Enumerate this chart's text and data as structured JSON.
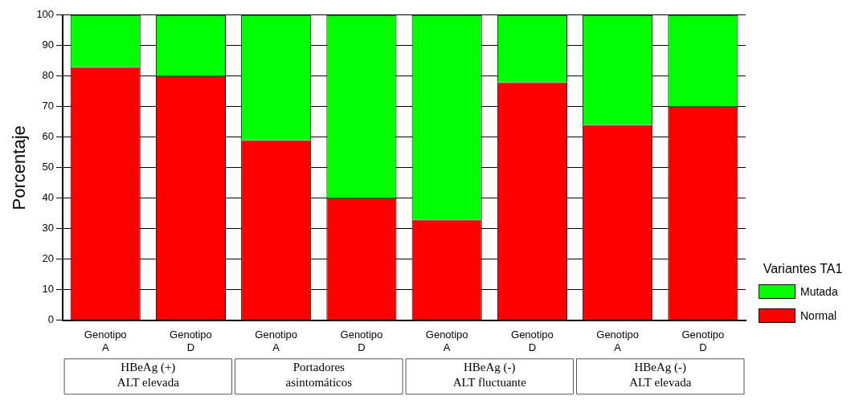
{
  "chart_data": {
    "type": "bar",
    "stacked": true,
    "ylabel": "Porcentaje",
    "legend_title": "Variantes TA1",
    "legend": "right",
    "grid": "y",
    "categories": [
      "Genotipo A",
      "Genotipo D",
      "Genotipo A",
      "Genotipo D",
      "Genotipo A",
      "Genotipo D",
      "Genotipo A",
      "Genotipo D"
    ],
    "series": [
      {
        "name": "Normal",
        "color": "#ff0000",
        "values": [
          83,
          80,
          59,
          40,
          33,
          78,
          64,
          70
        ]
      },
      {
        "name": "Mutada",
        "color": "#00ff00",
        "values": [
          17,
          20,
          41,
          60,
          67,
          22,
          36,
          30
        ]
      }
    ],
    "ylim": [
      0,
      100
    ],
    "yticks": [
      0,
      10,
      20,
      30,
      40,
      50,
      60,
      70,
      80,
      90,
      100
    ],
    "annotations": [
      "HBeAg (+)\nALT elevada",
      "Portadores\nasintomáticos",
      "HBeAg (-)\nALT fluctuante",
      "HBeAg (-)\nALT elevada"
    ]
  }
}
